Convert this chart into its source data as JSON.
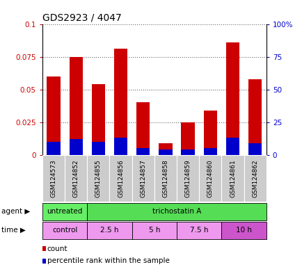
{
  "title": "GDS2923 / 4047",
  "samples": [
    "GSM124573",
    "GSM124852",
    "GSM124855",
    "GSM124856",
    "GSM124857",
    "GSM124858",
    "GSM124859",
    "GSM124860",
    "GSM124861",
    "GSM124862"
  ],
  "count_values": [
    0.06,
    0.075,
    0.054,
    0.081,
    0.04,
    0.009,
    0.025,
    0.034,
    0.086,
    0.058
  ],
  "percentile_values": [
    0.01,
    0.012,
    0.01,
    0.013,
    0.005,
    0.004,
    0.004,
    0.005,
    0.013,
    0.009
  ],
  "ylim": [
    0,
    0.1
  ],
  "yticks": [
    0,
    0.025,
    0.05,
    0.075,
    0.1
  ],
  "ytick_labels_left": [
    "0",
    "0.025",
    "0.05",
    "0.075",
    "0.1"
  ],
  "ytick_labels_right": [
    "0",
    "25",
    "50",
    "75",
    "100%"
  ],
  "bar_width": 0.6,
  "count_color": "#cc0000",
  "percentile_color": "#0000cc",
  "agent_cells": [
    {
      "text": "untreated",
      "span": 2,
      "color": "#66ee66"
    },
    {
      "text": "trichostatin A",
      "span": 8,
      "color": "#55dd55"
    }
  ],
  "time_cells": [
    {
      "text": "control",
      "span": 2,
      "color": "#ee99ee"
    },
    {
      "text": "2.5 h",
      "span": 2,
      "color": "#ee99ee"
    },
    {
      "text": "5 h",
      "span": 2,
      "color": "#ee99ee"
    },
    {
      "text": "7.5 h",
      "span": 2,
      "color": "#ee99ee"
    },
    {
      "text": "10 h",
      "span": 2,
      "color": "#cc55cc"
    }
  ],
  "legend_items": [
    {
      "label": "count",
      "color": "#cc0000"
    },
    {
      "label": "percentile rank within the sample",
      "color": "#0000cc"
    }
  ],
  "grid_color": "#666666",
  "tick_color_left": "#cc0000",
  "tick_color_right": "#0000cc",
  "background_color": "#ffffff",
  "xticklabel_bg": "#cccccc"
}
